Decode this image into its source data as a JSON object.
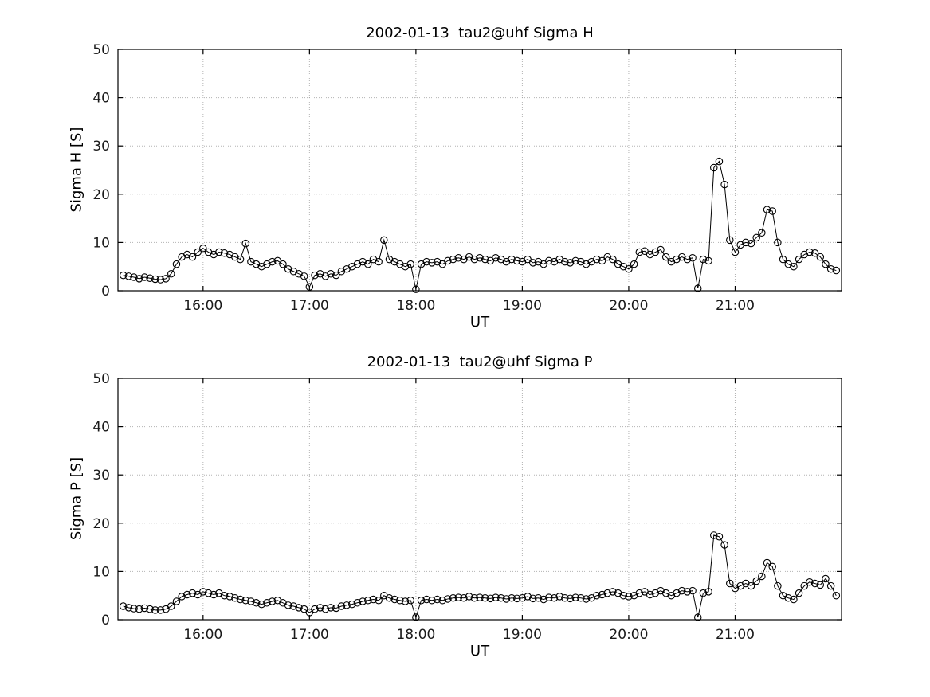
{
  "figure": {
    "background": "#ffffff",
    "line_color": "#000000",
    "grid_color": "#9a9a9a"
  },
  "chart_data": [
    {
      "type": "line",
      "title": "2002-01-13  tau2@uhf Sigma H",
      "xlabel": "UT",
      "ylabel": "Sigma H [S]",
      "xlim": [
        15.2,
        22.0
      ],
      "ylim": [
        0,
        50
      ],
      "xticks": [
        16,
        17,
        18,
        19,
        20,
        21
      ],
      "xtick_labels": [
        "16:00",
        "17:00",
        "18:00",
        "19:00",
        "20:00",
        "21:00"
      ],
      "yticks": [
        0,
        10,
        20,
        30,
        40,
        50
      ],
      "grid": true,
      "legend": "none",
      "marker": "open-circle",
      "x": [
        15.25,
        15.3,
        15.35,
        15.4,
        15.45,
        15.5,
        15.55,
        15.6,
        15.65,
        15.7,
        15.75,
        15.8,
        15.85,
        15.9,
        15.95,
        16,
        16.05,
        16.1,
        16.15,
        16.2,
        16.25,
        16.3,
        16.35,
        16.4,
        16.45,
        16.5,
        16.55,
        16.6,
        16.65,
        16.7,
        16.75,
        16.8,
        16.85,
        16.9,
        16.95,
        17,
        17.05,
        17.1,
        17.15,
        17.2,
        17.25,
        17.3,
        17.35,
        17.4,
        17.45,
        17.5,
        17.55,
        17.6,
        17.65,
        17.7,
        17.75,
        17.8,
        17.85,
        17.9,
        17.95,
        18,
        18.05,
        18.1,
        18.15,
        18.2,
        18.25,
        18.3,
        18.35,
        18.4,
        18.45,
        18.5,
        18.55,
        18.6,
        18.65,
        18.7,
        18.75,
        18.8,
        18.85,
        18.9,
        18.95,
        19,
        19.05,
        19.1,
        19.15,
        19.2,
        19.25,
        19.3,
        19.35,
        19.4,
        19.45,
        19.5,
        19.55,
        19.6,
        19.65,
        19.7,
        19.75,
        19.8,
        19.85,
        19.9,
        19.95,
        20,
        20.05,
        20.1,
        20.15,
        20.2,
        20.25,
        20.3,
        20.35,
        20.4,
        20.45,
        20.5,
        20.55,
        20.6,
        20.65,
        20.7,
        20.75,
        20.8,
        20.85,
        20.9,
        20.95,
        21,
        21.05,
        21.1,
        21.15,
        21.2,
        21.25,
        21.3,
        21.35,
        21.4,
        21.45,
        21.5,
        21.55,
        21.6,
        21.65,
        21.7,
        21.75,
        21.8,
        21.85,
        21.9,
        21.95
      ],
      "y": [
        3.2,
        3,
        2.8,
        2.5,
        2.8,
        2.6,
        2.4,
        2.3,
        2.5,
        3.5,
        5.5,
        7,
        7.5,
        7,
        8,
        8.8,
        8,
        7.5,
        8,
        7.8,
        7.5,
        7,
        6.5,
        9.8,
        6,
        5.5,
        5,
        5.5,
        6,
        6.2,
        5.5,
        4.5,
        4,
        3.5,
        3,
        0.8,
        3.2,
        3.5,
        3,
        3.5,
        3.2,
        4,
        4.5,
        5,
        5.5,
        6,
        5.5,
        6.5,
        6,
        10.5,
        6.5,
        6,
        5.5,
        5,
        5.5,
        0.3,
        5.5,
        6,
        5.8,
        6,
        5.5,
        6.2,
        6.5,
        6.8,
        6.5,
        7,
        6.5,
        6.8,
        6.5,
        6.2,
        6.8,
        6.5,
        6,
        6.5,
        6.2,
        6,
        6.5,
        5.8,
        6,
        5.5,
        6.2,
        6,
        6.5,
        6,
        5.8,
        6.2,
        6,
        5.5,
        6,
        6.5,
        6.2,
        7,
        6.5,
        5.5,
        5,
        4.5,
        5.5,
        8,
        8.2,
        7.5,
        8,
        8.5,
        7,
        6,
        6.5,
        7,
        6.5,
        6.8,
        0.5,
        6.5,
        6.2,
        25.5,
        26.8,
        22,
        10.5,
        8,
        9.5,
        10,
        9.8,
        11,
        12,
        16.8,
        16.5,
        10,
        6.5,
        5.5,
        5,
        6.5,
        7.5,
        8,
        7.8,
        7,
        5.5,
        4.5,
        4.2
      ]
    },
    {
      "type": "line",
      "title": "2002-01-13  tau2@uhf Sigma P",
      "xlabel": "UT",
      "ylabel": "Sigma P [S]",
      "xlim": [
        15.2,
        22.0
      ],
      "ylim": [
        0,
        50
      ],
      "xticks": [
        16,
        17,
        18,
        19,
        20,
        21
      ],
      "xtick_labels": [
        "16:00",
        "17:00",
        "18:00",
        "19:00",
        "20:00",
        "21:00"
      ],
      "yticks": [
        0,
        10,
        20,
        30,
        40,
        50
      ],
      "grid": true,
      "legend": "none",
      "marker": "open-circle",
      "x": [
        15.25,
        15.3,
        15.35,
        15.4,
        15.45,
        15.5,
        15.55,
        15.6,
        15.65,
        15.7,
        15.75,
        15.8,
        15.85,
        15.9,
        15.95,
        16,
        16.05,
        16.1,
        16.15,
        16.2,
        16.25,
        16.3,
        16.35,
        16.4,
        16.45,
        16.5,
        16.55,
        16.6,
        16.65,
        16.7,
        16.75,
        16.8,
        16.85,
        16.9,
        16.95,
        17,
        17.05,
        17.1,
        17.15,
        17.2,
        17.25,
        17.3,
        17.35,
        17.4,
        17.45,
        17.5,
        17.55,
        17.6,
        17.65,
        17.7,
        17.75,
        17.8,
        17.85,
        17.9,
        17.95,
        18,
        18.05,
        18.1,
        18.15,
        18.2,
        18.25,
        18.3,
        18.35,
        18.4,
        18.45,
        18.5,
        18.55,
        18.6,
        18.65,
        18.7,
        18.75,
        18.8,
        18.85,
        18.9,
        18.95,
        19,
        19.05,
        19.1,
        19.15,
        19.2,
        19.25,
        19.3,
        19.35,
        19.4,
        19.45,
        19.5,
        19.55,
        19.6,
        19.65,
        19.7,
        19.75,
        19.8,
        19.85,
        19.9,
        19.95,
        20,
        20.05,
        20.1,
        20.15,
        20.2,
        20.25,
        20.3,
        20.35,
        20.4,
        20.45,
        20.5,
        20.55,
        20.6,
        20.65,
        20.7,
        20.75,
        20.8,
        20.85,
        20.9,
        20.95,
        21,
        21.05,
        21.1,
        21.15,
        21.2,
        21.25,
        21.3,
        21.35,
        21.4,
        21.45,
        21.5,
        21.55,
        21.6,
        21.65,
        21.7,
        21.75,
        21.8,
        21.85,
        21.9,
        21.95
      ],
      "y": [
        2.8,
        2.5,
        2.3,
        2.2,
        2.4,
        2.2,
        2,
        2,
        2.2,
        2.8,
        3.8,
        4.8,
        5.2,
        5.5,
        5.2,
        5.8,
        5.5,
        5.2,
        5.5,
        5,
        4.8,
        4.5,
        4.2,
        4,
        3.8,
        3.5,
        3.2,
        3.5,
        3.8,
        4,
        3.5,
        3,
        2.8,
        2.5,
        2.2,
        1.5,
        2.2,
        2.5,
        2.2,
        2.5,
        2.4,
        2.8,
        3,
        3.2,
        3.5,
        3.8,
        4,
        4.2,
        4,
        5,
        4.5,
        4.2,
        4,
        3.8,
        4,
        0.5,
        4,
        4.2,
        4,
        4.2,
        4,
        4.3,
        4.5,
        4.6,
        4.5,
        4.8,
        4.5,
        4.6,
        4.5,
        4.4,
        4.6,
        4.5,
        4.3,
        4.5,
        4.4,
        4.5,
        4.8,
        4.4,
        4.5,
        4.2,
        4.6,
        4.5,
        4.8,
        4.5,
        4.4,
        4.6,
        4.5,
        4.3,
        4.5,
        5,
        5.2,
        5.5,
        5.8,
        5.5,
        5,
        4.8,
        5,
        5.5,
        5.8,
        5.2,
        5.5,
        6,
        5.5,
        5,
        5.5,
        6,
        5.8,
        6,
        0.5,
        5.5,
        5.8,
        17.5,
        17.2,
        15.5,
        7.5,
        6.5,
        7,
        7.5,
        7,
        8,
        9,
        11.8,
        11,
        7,
        5,
        4.5,
        4.2,
        5.5,
        7,
        7.8,
        7.5,
        7.2,
        8.5,
        7,
        5
      ]
    }
  ]
}
